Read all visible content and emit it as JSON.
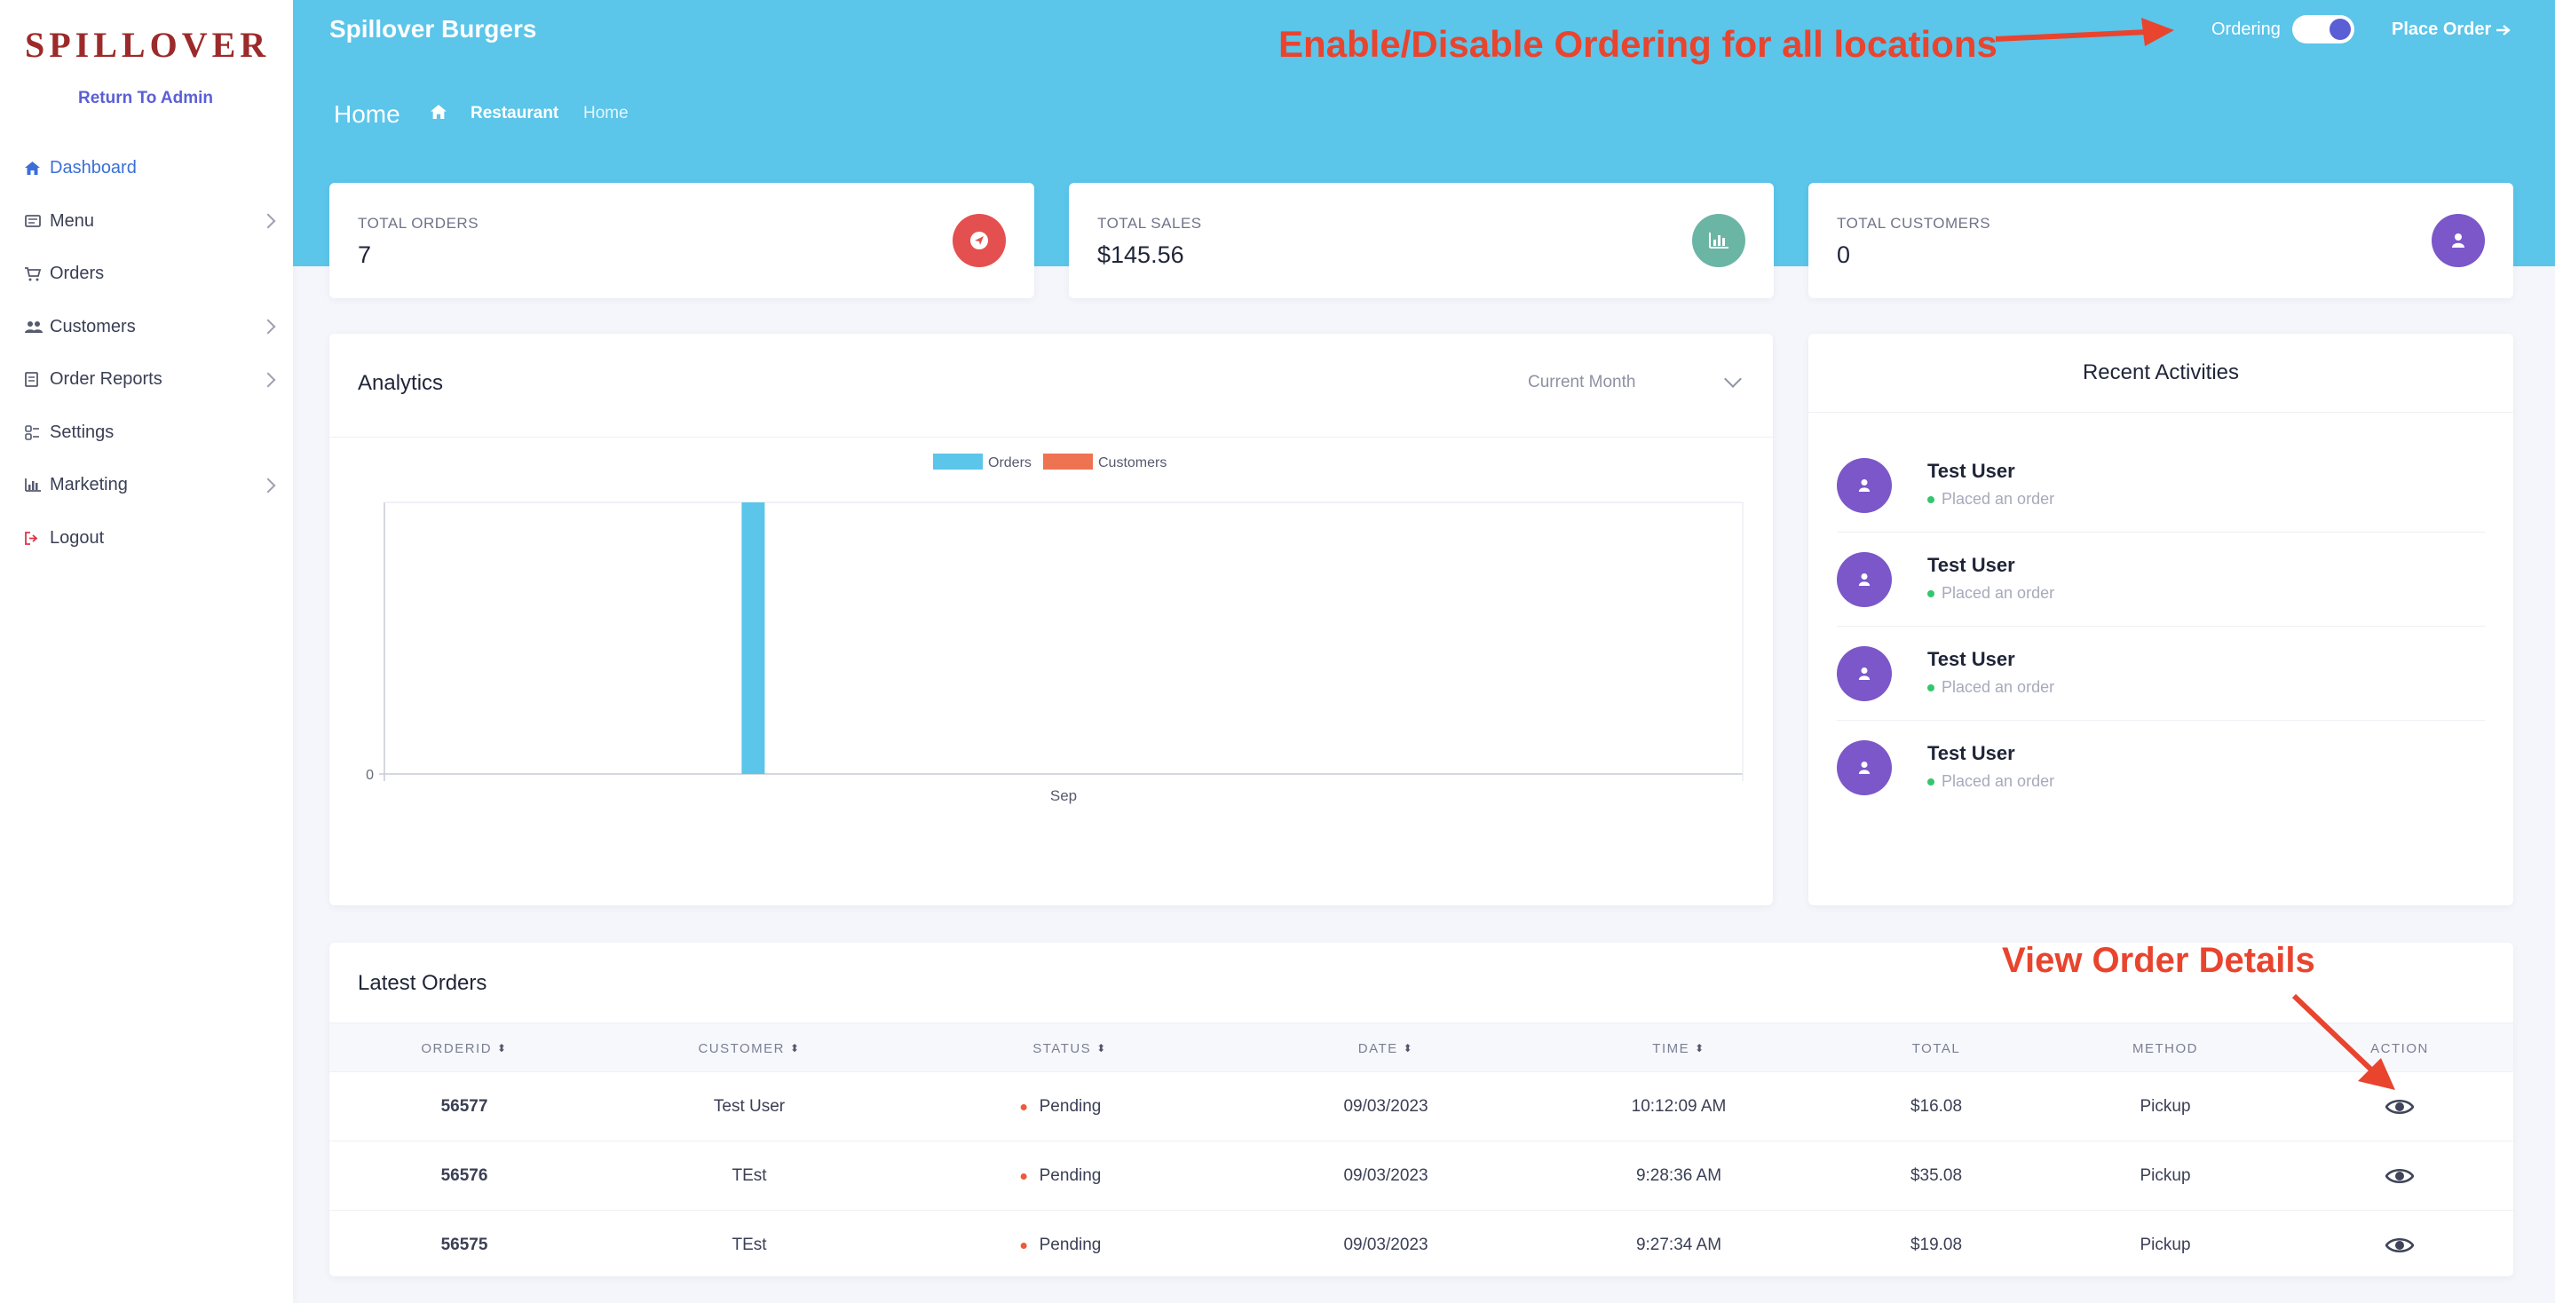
{
  "sidebar": {
    "logo": "SPILLOVER",
    "return_link": "Return To Admin",
    "items": [
      {
        "label": "Dashboard",
        "icon": "home-icon",
        "active": true
      },
      {
        "label": "Menu",
        "icon": "menu-card-icon",
        "chevron": true
      },
      {
        "label": "Orders",
        "icon": "cart-icon"
      },
      {
        "label": "Customers",
        "icon": "users-icon",
        "chevron": true
      },
      {
        "label": "Order Reports",
        "icon": "report-icon",
        "chevron": true
      },
      {
        "label": "Settings",
        "icon": "settings-icon"
      },
      {
        "label": "Marketing",
        "icon": "bar-chart-icon",
        "chevron": true
      },
      {
        "label": "Logout",
        "icon": "logout-icon"
      }
    ]
  },
  "header": {
    "brand": "Spillover Burgers",
    "annotation": "Enable/Disable Ordering for all locations",
    "ordering_label": "Ordering",
    "ordering_enabled": true,
    "place_order": "Place Order"
  },
  "page": {
    "title": "Home",
    "breadcrumb": [
      "Restaurant",
      "Home"
    ]
  },
  "stats": [
    {
      "label": "TOTAL ORDERS",
      "value": "7",
      "icon": "send-icon",
      "color": "#e4504f"
    },
    {
      "label": "TOTAL SALES",
      "value": "$145.56",
      "icon": "bar-chart-icon",
      "color": "#6bb5a5"
    },
    {
      "label": "TOTAL CUSTOMERS",
      "value": "0",
      "icon": "user-icon",
      "color": "#7b57c9"
    }
  ],
  "analytics": {
    "title": "Analytics",
    "period": "Current Month"
  },
  "chart_data": {
    "type": "bar",
    "categories": [
      "Sep"
    ],
    "series": [
      {
        "name": "Orders",
        "values": [
          7
        ],
        "color": "#5bc5ea"
      },
      {
        "name": "Customers",
        "values": [
          0
        ],
        "color": "#ee7351"
      }
    ],
    "ytick_labels": [
      "0"
    ],
    "legend_position": "top",
    "ylim": [
      0,
      7
    ]
  },
  "recent": {
    "title": "Recent Activities",
    "items": [
      {
        "name": "Test User",
        "action": "Placed an order"
      },
      {
        "name": "Test User",
        "action": "Placed an order"
      },
      {
        "name": "Test User",
        "action": "Placed an order"
      },
      {
        "name": "Test User",
        "action": "Placed an order"
      }
    ]
  },
  "orders": {
    "title": "Latest Orders",
    "annotation": "View Order Details",
    "columns": [
      "ORDERID",
      "CUSTOMER",
      "STATUS",
      "DATE",
      "TIME",
      "TOTAL",
      "METHOD",
      "ACTION"
    ],
    "rows": [
      {
        "id": "56577",
        "customer": "Test User",
        "status": "Pending",
        "date": "09/03/2023",
        "time": "10:12:09 AM",
        "total": "$16.08",
        "method": "Pickup"
      },
      {
        "id": "56576",
        "customer": "TEst",
        "status": "Pending",
        "date": "09/03/2023",
        "time": "9:28:36 AM",
        "total": "$35.08",
        "method": "Pickup"
      },
      {
        "id": "56575",
        "customer": "TEst",
        "status": "Pending",
        "date": "09/03/2023",
        "time": "9:27:34 AM",
        "total": "$19.08",
        "method": "Pickup"
      }
    ]
  }
}
